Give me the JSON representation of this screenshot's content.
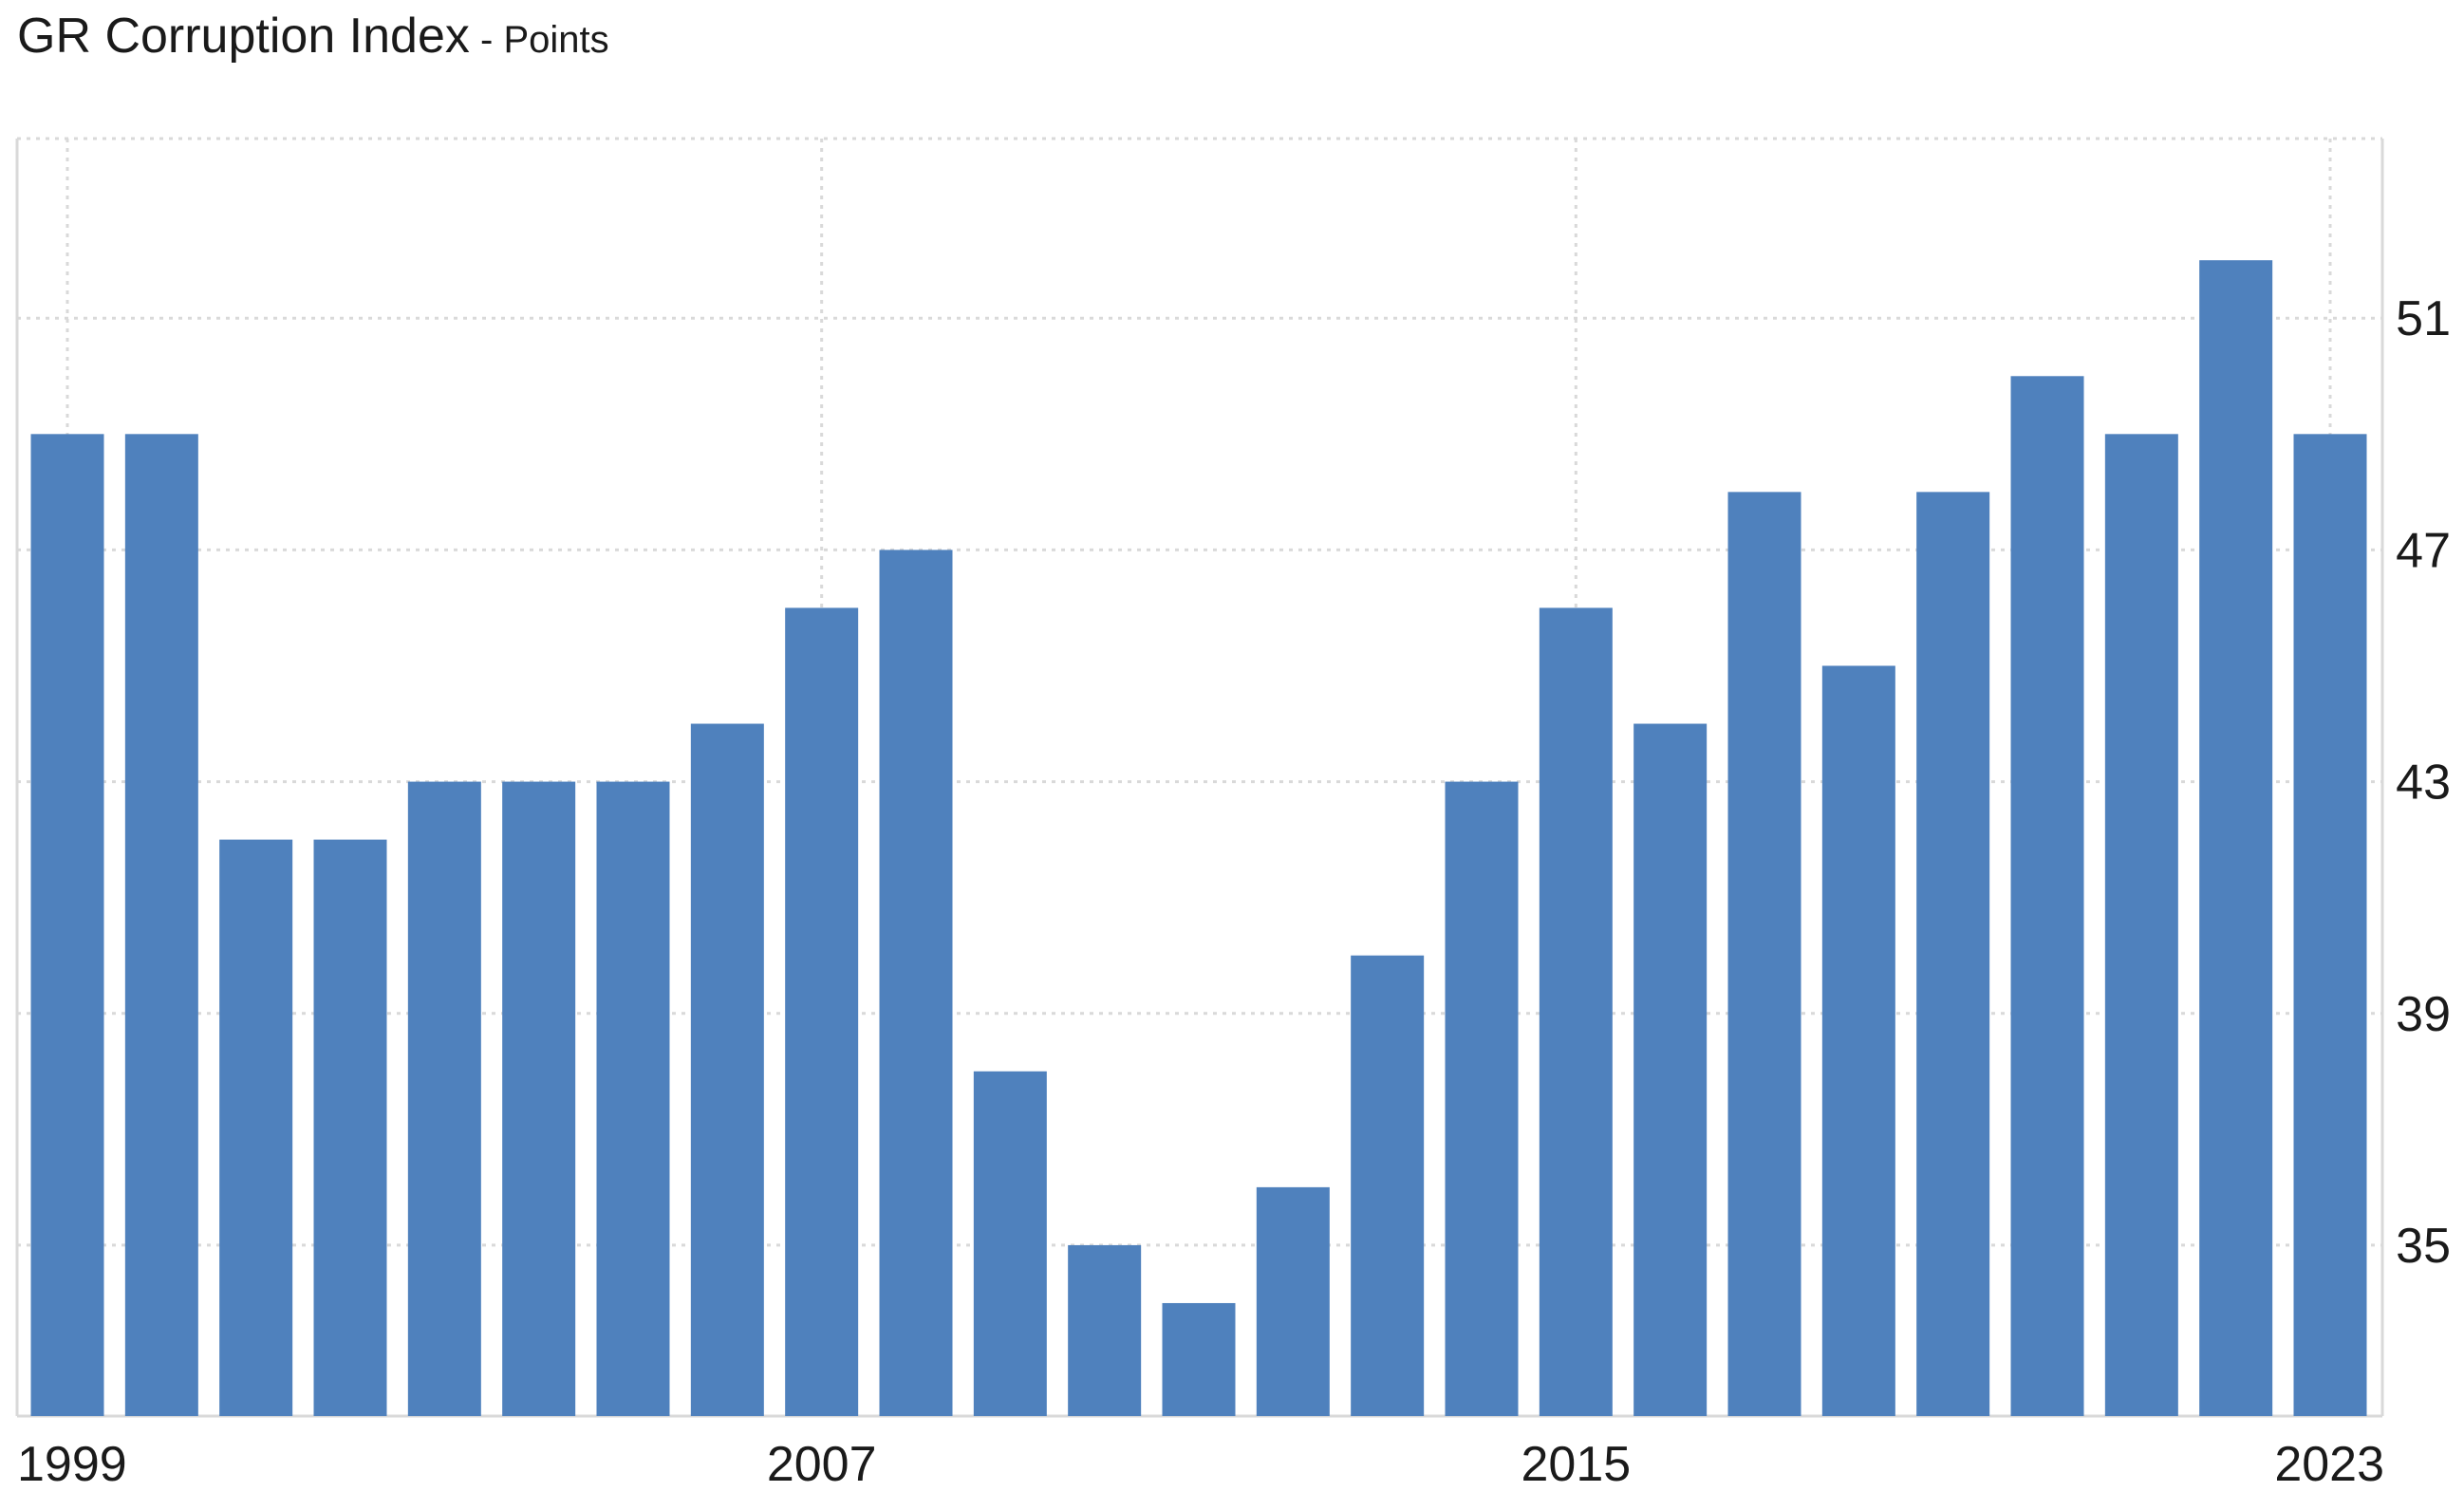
{
  "title": {
    "main": "GR Corruption Index",
    "separator": " - ",
    "unit": "Points"
  },
  "colors": {
    "bar": "#4f81bd",
    "grid": "#d9d9d9",
    "text": "#1a1a1a"
  },
  "chart_data": {
    "type": "bar",
    "title": "GR Corruption Index",
    "unit": "Points",
    "x": [
      1999,
      2000,
      2001,
      2002,
      2003,
      2004,
      2005,
      2006,
      2007,
      2008,
      2009,
      2010,
      2011,
      2012,
      2013,
      2014,
      2015,
      2016,
      2017,
      2018,
      2019,
      2020,
      2021,
      2022,
      2023
    ],
    "values": [
      49,
      49,
      42,
      42,
      43,
      43,
      43,
      44,
      46,
      47,
      38,
      35,
      34,
      36,
      40,
      43,
      46,
      44,
      48,
      45,
      48,
      50,
      49,
      52,
      49
    ],
    "x_tick_labels": [
      "1999",
      "2007",
      "2015",
      "2023"
    ],
    "x_tick_values": [
      1999,
      2007,
      2015,
      2023
    ],
    "y_tick_labels": [
      "51",
      "47",
      "43",
      "39",
      "35"
    ],
    "y_tick_values": [
      51,
      47,
      43,
      39,
      35
    ],
    "ylim": [
      32.05,
      54.1
    ],
    "y_axis_position": "right",
    "grid": true,
    "legend": "none"
  }
}
